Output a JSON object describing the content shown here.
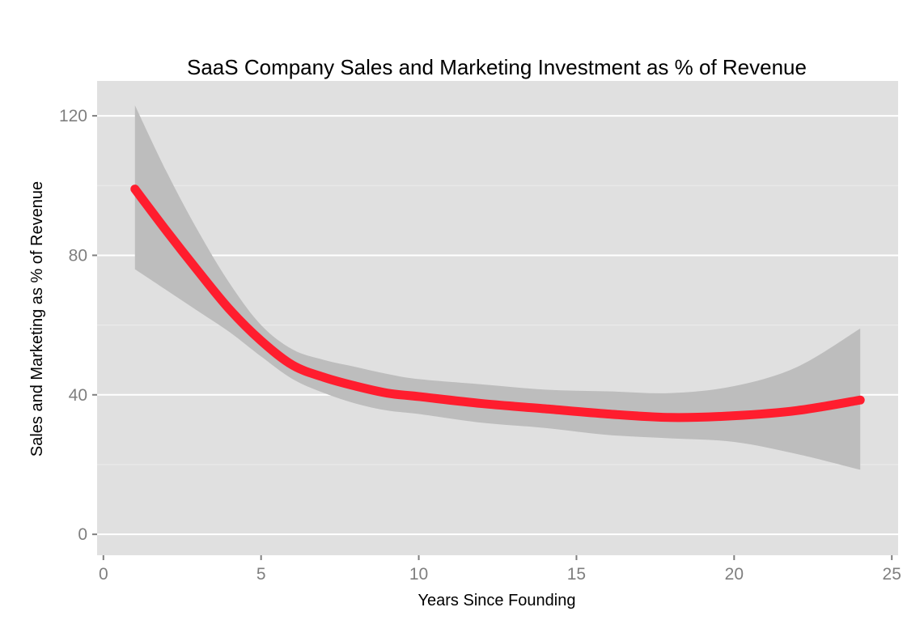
{
  "chart_data": {
    "type": "line",
    "title": "SaaS Company Sales and Marketing Investment as % of Revenue",
    "xlabel": "Years Since Founding",
    "ylabel": "Sales and Marketing as % of Revenue",
    "xlim": [
      -0.2,
      25.2
    ],
    "ylim": [
      -6,
      130
    ],
    "x_ticks": [
      0,
      5,
      10,
      15,
      20,
      25
    ],
    "x_tick_labels": [
      "0",
      "5",
      "10",
      "15",
      "20",
      "25"
    ],
    "y_ticks": [
      0,
      40,
      80,
      120
    ],
    "y_tick_labels": [
      "0",
      "40",
      "80",
      "120"
    ],
    "grid": true,
    "panel_background": "#e0e0e0",
    "grid_major_color": "#ffffff",
    "grid_minor_color": "#ececec",
    "line_color": "#ff1d2e",
    "ribbon_color": "#bdbdbd",
    "series": [
      {
        "x": [
          1,
          2,
          3,
          4,
          5,
          6,
          7,
          8,
          9,
          10,
          12,
          14,
          16,
          18,
          20,
          22,
          24
        ],
        "y": [
          99,
          87,
          75.5,
          64.5,
          55.5,
          48.5,
          45,
          42.5,
          40.5,
          39.5,
          37.5,
          36,
          34.5,
          33.5,
          34,
          35.5,
          38.5
        ],
        "lower": [
          76,
          70,
          64,
          58,
          51,
          44.5,
          40.5,
          37.5,
          35.5,
          34.5,
          32,
          30.5,
          28.5,
          27.5,
          26.5,
          23,
          18.5
        ],
        "upper": [
          123,
          104,
          87,
          72,
          60,
          53,
          50,
          48,
          46,
          44.5,
          43,
          41.5,
          41,
          40.5,
          42.5,
          48,
          59
        ]
      }
    ]
  }
}
